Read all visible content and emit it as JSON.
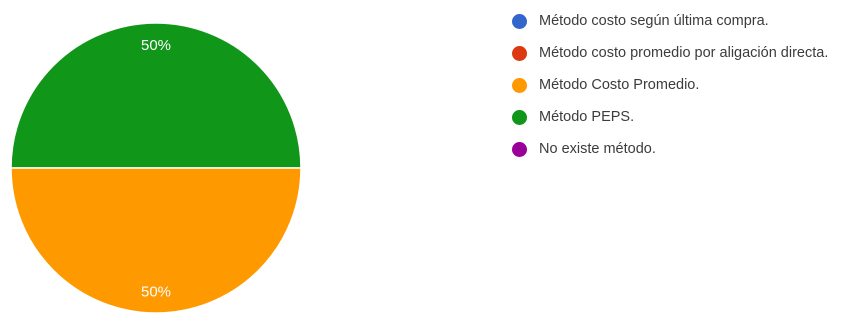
{
  "chart_data": {
    "type": "pie",
    "categories": [
      "Método costo según última compra.",
      "Método costo promedio por aligación directa.",
      "Método Costo Promedio.",
      "Método PEPS.",
      "No existe método."
    ],
    "values": [
      0,
      0,
      50,
      50,
      0
    ],
    "colors": [
      "#3366cc",
      "#dc3912",
      "#ff9900",
      "#109618",
      "#990099"
    ],
    "slice_labels": [
      "",
      "",
      "50%",
      "50%",
      ""
    ],
    "legend_position": "right"
  }
}
